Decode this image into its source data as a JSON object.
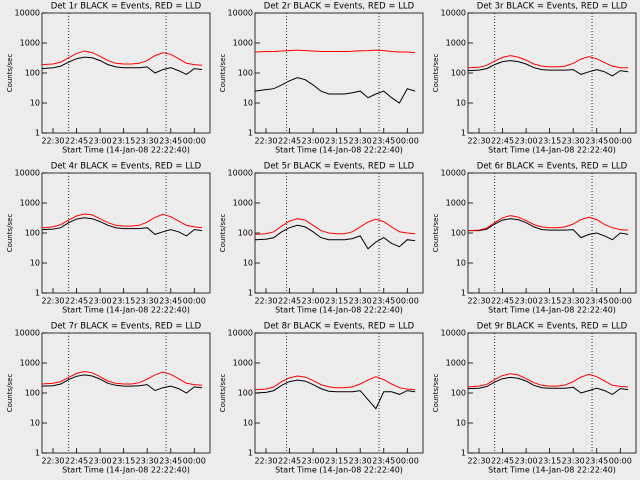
{
  "chart_data": [
    {
      "type": "line",
      "title": "Det 1r BLACK = Events, RED = LLD",
      "xlabel": "Start Time (14-Jan-08 22:22:40)",
      "ylabel": "Counts/sec",
      "log_y": true,
      "ylim": [
        1,
        10000
      ],
      "yticks": [
        1,
        10,
        100,
        1000,
        10000
      ],
      "xlim": [
        "22:23",
        "00:10"
      ],
      "xticks": [
        "22:30",
        "22:45",
        "23:00",
        "23:15",
        "23:30",
        "23:45",
        "00:00"
      ],
      "markers": [
        "22:40",
        "23:42"
      ],
      "x": [
        "22:23",
        "22:30",
        "22:35",
        "22:40",
        "22:45",
        "22:50",
        "22:55",
        "23:00",
        "23:05",
        "23:10",
        "23:15",
        "23:20",
        "23:25",
        "23:30",
        "23:35",
        "23:40",
        "23:45",
        "23:50",
        "23:55",
        "00:00",
        "00:05"
      ],
      "series": [
        {
          "name": "BLACK",
          "color": "#000000",
          "values": [
            140,
            150,
            170,
            230,
            300,
            340,
            320,
            260,
            190,
            160,
            150,
            150,
            150,
            160,
            100,
            130,
            150,
            120,
            90,
            140,
            130
          ]
        },
        {
          "name": "RED",
          "color": "#ff0000",
          "values": [
            190,
            200,
            230,
            320,
            450,
            540,
            480,
            360,
            260,
            210,
            200,
            200,
            210,
            260,
            380,
            480,
            420,
            300,
            210,
            190,
            180
          ]
        }
      ]
    },
    {
      "type": "line",
      "title": "Det 2r BLACK = Events, RED = LLD",
      "xlabel": "Start Time (14-Jan-08 22:22:40)",
      "ylabel": "Counts/sec",
      "log_y": true,
      "ylim": [
        1,
        10000
      ],
      "yticks": [
        1,
        10,
        100,
        1000,
        10000
      ],
      "xlim": [
        "22:23",
        "00:10"
      ],
      "xticks": [
        "22:30",
        "22:45",
        "23:00",
        "23:15",
        "23:30",
        "23:45",
        "00:00"
      ],
      "markers": [
        "22:43",
        "23:42"
      ],
      "x": [
        "22:23",
        "22:30",
        "22:35",
        "22:40",
        "22:45",
        "22:50",
        "22:55",
        "23:00",
        "23:05",
        "23:10",
        "23:15",
        "23:20",
        "23:25",
        "23:30",
        "23:35",
        "23:40",
        "23:45",
        "23:50",
        "23:55",
        "00:00",
        "00:05"
      ],
      "series": [
        {
          "name": "BLACK",
          "color": "#000000",
          "values": [
            25,
            28,
            30,
            40,
            55,
            70,
            60,
            40,
            25,
            20,
            20,
            20,
            22,
            25,
            15,
            20,
            25,
            15,
            10,
            30,
            25
          ]
        },
        {
          "name": "RED",
          "color": "#ff0000",
          "values": [
            500,
            520,
            520,
            540,
            560,
            580,
            560,
            540,
            520,
            520,
            520,
            520,
            530,
            550,
            560,
            580,
            560,
            520,
            500,
            500,
            480
          ]
        }
      ]
    },
    {
      "type": "line",
      "title": "Det 3r BLACK = Events, RED = LLD",
      "xlabel": "Start Time (14-Jan-08 22:22:40)",
      "ylabel": "Counts/sec",
      "log_y": true,
      "ylim": [
        1,
        10000
      ],
      "yticks": [
        1,
        10,
        100,
        1000,
        10000
      ],
      "xlim": [
        "22:23",
        "00:10"
      ],
      "xticks": [
        "22:30",
        "22:45",
        "23:00",
        "23:15",
        "23:30",
        "23:45",
        "00:00"
      ],
      "markers": [
        "22:40",
        "23:42"
      ],
      "x": [
        "22:23",
        "22:30",
        "22:35",
        "22:40",
        "22:45",
        "22:50",
        "22:55",
        "23:00",
        "23:05",
        "23:10",
        "23:15",
        "23:20",
        "23:25",
        "23:30",
        "23:35",
        "23:40",
        "23:45",
        "23:50",
        "23:55",
        "00:00",
        "00:05"
      ],
      "series": [
        {
          "name": "BLACK",
          "color": "#000000",
          "values": [
            120,
            125,
            140,
            190,
            240,
            260,
            240,
            200,
            150,
            130,
            125,
            125,
            125,
            130,
            90,
            110,
            130,
            110,
            80,
            120,
            110
          ]
        },
        {
          "name": "RED",
          "color": "#ff0000",
          "values": [
            150,
            155,
            180,
            250,
            330,
            380,
            340,
            270,
            200,
            170,
            160,
            160,
            170,
            210,
            290,
            350,
            300,
            220,
            170,
            150,
            150
          ]
        }
      ]
    },
    {
      "type": "line",
      "title": "Det 4r BLACK = Events, RED = LLD",
      "xlabel": "Start Time (14-Jan-08 22:22:40)",
      "ylabel": "Counts/sec",
      "log_y": true,
      "ylim": [
        1,
        10000
      ],
      "yticks": [
        1,
        10,
        100,
        1000,
        10000
      ],
      "xlim": [
        "22:23",
        "00:10"
      ],
      "xticks": [
        "22:30",
        "22:45",
        "23:00",
        "23:15",
        "23:30",
        "23:45",
        "00:00"
      ],
      "markers": [
        "22:40",
        "23:42"
      ],
      "x": [
        "22:23",
        "22:30",
        "22:35",
        "22:40",
        "22:45",
        "22:50",
        "22:55",
        "23:00",
        "23:05",
        "23:10",
        "23:15",
        "23:20",
        "23:25",
        "23:30",
        "23:35",
        "23:40",
        "23:45",
        "23:50",
        "23:55",
        "00:00",
        "00:05"
      ],
      "series": [
        {
          "name": "BLACK",
          "color": "#000000",
          "values": [
            130,
            135,
            150,
            220,
            290,
            320,
            300,
            240,
            180,
            150,
            140,
            140,
            140,
            150,
            90,
            110,
            130,
            110,
            80,
            130,
            120
          ]
        },
        {
          "name": "RED",
          "color": "#ff0000",
          "values": [
            150,
            160,
            190,
            270,
            370,
            430,
            400,
            300,
            220,
            180,
            170,
            170,
            180,
            230,
            330,
            420,
            350,
            250,
            180,
            160,
            150
          ]
        }
      ]
    },
    {
      "type": "line",
      "title": "Det 5r BLACK = Events, RED = LLD",
      "xlabel": "Start Time (14-Jan-08 22:22:40)",
      "ylabel": "Counts/sec",
      "log_y": true,
      "ylim": [
        1,
        10000
      ],
      "yticks": [
        1,
        10,
        100,
        1000,
        10000
      ],
      "xlim": [
        "22:23",
        "00:10"
      ],
      "xticks": [
        "22:30",
        "22:45",
        "23:00",
        "23:15",
        "23:30",
        "23:45",
        "00:00"
      ],
      "markers": [
        "22:43",
        "23:42"
      ],
      "x": [
        "22:23",
        "22:30",
        "22:35",
        "22:40",
        "22:45",
        "22:50",
        "22:55",
        "23:00",
        "23:05",
        "23:10",
        "23:15",
        "23:20",
        "23:25",
        "23:30",
        "23:35",
        "23:40",
        "23:45",
        "23:50",
        "23:55",
        "00:00",
        "00:05"
      ],
      "series": [
        {
          "name": "BLACK",
          "color": "#000000",
          "values": [
            60,
            62,
            70,
            110,
            150,
            180,
            160,
            110,
            70,
            60,
            60,
            60,
            65,
            80,
            30,
            50,
            70,
            45,
            35,
            60,
            55
          ]
        },
        {
          "name": "RED",
          "color": "#ff0000",
          "values": [
            90,
            95,
            110,
            170,
            250,
            300,
            270,
            180,
            120,
            100,
            95,
            95,
            110,
            160,
            230,
            290,
            240,
            160,
            110,
            100,
            95
          ]
        }
      ]
    },
    {
      "type": "line",
      "title": "Det 6r BLACK = Events, RED = LLD",
      "xlabel": "Start Time (14-Jan-08 22:22:40)",
      "ylabel": "Counts/sec",
      "log_y": true,
      "ylim": [
        1,
        10000
      ],
      "yticks": [
        1,
        10,
        100,
        1000,
        10000
      ],
      "xlim": [
        "22:23",
        "00:10"
      ],
      "xticks": [
        "22:30",
        "22:45",
        "23:00",
        "23:15",
        "23:30",
        "23:45",
        "00:00"
      ],
      "markers": [
        "22:40",
        "23:42"
      ],
      "x": [
        "22:23",
        "22:30",
        "22:35",
        "22:40",
        "22:45",
        "22:50",
        "22:55",
        "23:00",
        "23:05",
        "23:10",
        "23:15",
        "23:20",
        "23:25",
        "23:30",
        "23:35",
        "23:40",
        "23:45",
        "23:50",
        "23:55",
        "00:00",
        "00:05"
      ],
      "series": [
        {
          "name": "BLACK",
          "color": "#000000",
          "values": [
            120,
            120,
            135,
            200,
            270,
            300,
            280,
            220,
            160,
            130,
            125,
            125,
            125,
            130,
            70,
            90,
            100,
            80,
            60,
            100,
            90
          ]
        },
        {
          "name": "RED",
          "color": "#ff0000",
          "values": [
            120,
            125,
            145,
            220,
            320,
            380,
            340,
            260,
            190,
            160,
            150,
            150,
            160,
            200,
            280,
            340,
            280,
            190,
            150,
            130,
            125
          ]
        }
      ]
    },
    {
      "type": "line",
      "title": "Det 7r BLACK = Events, RED = LLD",
      "xlabel": "Start Time (14-Jan-08 22:22:40)",
      "ylabel": "Counts/sec",
      "log_y": true,
      "ylim": [
        1,
        10000
      ],
      "yticks": [
        1,
        10,
        100,
        1000,
        10000
      ],
      "xlim": [
        "22:23",
        "00:10"
      ],
      "xticks": [
        "22:30",
        "22:45",
        "23:00",
        "23:15",
        "23:30",
        "23:45",
        "00:00"
      ],
      "markers": [
        "22:40",
        "23:42"
      ],
      "x": [
        "22:23",
        "22:30",
        "22:35",
        "22:40",
        "22:45",
        "22:50",
        "22:55",
        "23:00",
        "23:05",
        "23:10",
        "23:15",
        "23:20",
        "23:25",
        "23:30",
        "23:35",
        "23:40",
        "23:45",
        "23:50",
        "23:55",
        "00:00",
        "00:05"
      ],
      "series": [
        {
          "name": "BLACK",
          "color": "#000000",
          "values": [
            170,
            175,
            200,
            280,
            360,
            400,
            370,
            290,
            210,
            180,
            170,
            170,
            175,
            190,
            120,
            150,
            170,
            140,
            100,
            160,
            150
          ]
        },
        {
          "name": "RED",
          "color": "#ff0000",
          "values": [
            200,
            210,
            240,
            330,
            450,
            520,
            470,
            350,
            250,
            210,
            200,
            200,
            220,
            290,
            400,
            500,
            420,
            300,
            210,
            190,
            180
          ]
        }
      ]
    },
    {
      "type": "line",
      "title": "Det 8r BLACK = Events, RED = LLD",
      "xlabel": "Start Time (14-Jan-08 22:22:40)",
      "ylabel": "Counts/sec",
      "log_y": true,
      "ylim": [
        1,
        10000
      ],
      "yticks": [
        1,
        10,
        100,
        1000,
        10000
      ],
      "xlim": [
        "22:23",
        "00:10"
      ],
      "xticks": [
        "22:30",
        "22:45",
        "23:00",
        "23:15",
        "23:30",
        "23:45",
        "00:00"
      ],
      "markers": [
        "22:43",
        "23:42"
      ],
      "x": [
        "22:23",
        "22:30",
        "22:35",
        "22:40",
        "22:45",
        "22:50",
        "22:55",
        "23:00",
        "23:05",
        "23:10",
        "23:15",
        "23:20",
        "23:25",
        "23:30",
        "23:35",
        "23:40",
        "23:45",
        "23:50",
        "23:55",
        "00:00",
        "00:05"
      ],
      "series": [
        {
          "name": "BLACK",
          "color": "#000000",
          "values": [
            100,
            105,
            120,
            180,
            240,
            270,
            250,
            190,
            140,
            115,
            110,
            110,
            110,
            120,
            60,
            30,
            110,
            110,
            90,
            120,
            110
          ]
        },
        {
          "name": "RED",
          "color": "#ff0000",
          "values": [
            130,
            135,
            160,
            240,
            320,
            370,
            340,
            260,
            190,
            160,
            150,
            150,
            160,
            200,
            270,
            350,
            280,
            200,
            150,
            135,
            130
          ]
        }
      ]
    },
    {
      "type": "line",
      "title": "Det 9r BLACK = Events, RED = LLD",
      "xlabel": "Start Time (14-Jan-08 22:22:40)",
      "ylabel": "Counts/sec",
      "log_y": true,
      "ylim": [
        1,
        10000
      ],
      "yticks": [
        1,
        10,
        100,
        1000,
        10000
      ],
      "xlim": [
        "22:23",
        "00:10"
      ],
      "xticks": [
        "22:30",
        "22:45",
        "23:00",
        "23:15",
        "23:30",
        "23:45",
        "00:00"
      ],
      "markers": [
        "22:40",
        "23:42"
      ],
      "x": [
        "22:23",
        "22:30",
        "22:35",
        "22:40",
        "22:45",
        "22:50",
        "22:55",
        "23:00",
        "23:05",
        "23:10",
        "23:15",
        "23:20",
        "23:25",
        "23:30",
        "23:35",
        "23:40",
        "23:45",
        "23:50",
        "23:55",
        "00:00",
        "00:05"
      ],
      "series": [
        {
          "name": "BLACK",
          "color": "#000000",
          "values": [
            140,
            145,
            165,
            230,
            300,
            330,
            310,
            250,
            180,
            150,
            145,
            145,
            145,
            155,
            100,
            120,
            145,
            120,
            90,
            140,
            130
          ]
        },
        {
          "name": "RED",
          "color": "#ff0000",
          "values": [
            160,
            170,
            195,
            280,
            380,
            440,
            400,
            300,
            220,
            180,
            170,
            170,
            185,
            240,
            340,
            420,
            350,
            250,
            180,
            165,
            160
          ]
        }
      ]
    }
  ]
}
